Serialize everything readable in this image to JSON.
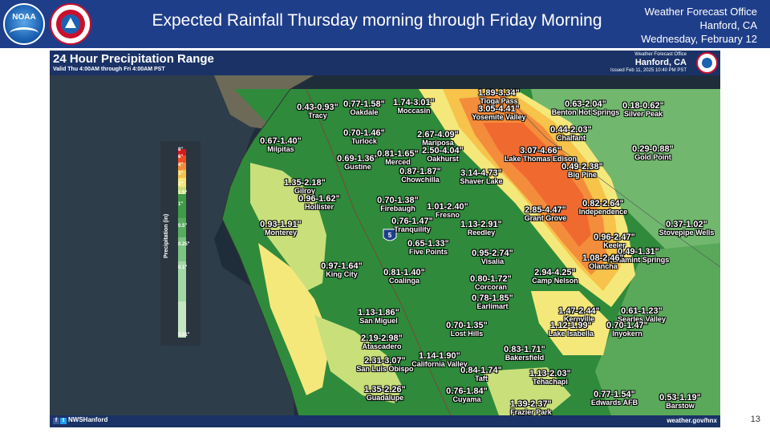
{
  "slide": {
    "title": "Expected Rainfall Thursday morning through Friday Morning",
    "office_line1": "Weather Forecast Office",
    "office_line2": "Hanford, CA",
    "office_line3": "Wednesday, February 12",
    "noaa_logo_text": "NOAA",
    "nws_logo_text": "NATIONAL WEATHER SERVICE",
    "page_number": "13"
  },
  "graphic": {
    "title": "24 Hour Precipitation Range",
    "valid": "Valid Thu 4:00AM through Fri 4:00AM PST",
    "office_line1": "Weather Forecast Office",
    "office_line2": "Hanford, CA",
    "issued": "Issued Feb 11, 2025 10:40 PM PST",
    "social": "NWSHanford",
    "website": "weather.gov/hnx",
    "highway_shield": "5"
  },
  "legend": {
    "axis_label": "Precipitation (in)",
    "ticks": [
      "8\"",
      "6\"",
      "4\"",
      "3\"",
      "2\"",
      "1.5\"",
      "1\"",
      "0.5\"",
      "0.25\"",
      "0.1\"",
      "0.01\""
    ],
    "colors": [
      "#d7191c",
      "#f04d23",
      "#f48d3b",
      "#f7c34b",
      "#f5e87a",
      "#c9e07a",
      "#3f9b47",
      "#56ae5d",
      "#7cc481",
      "#a3d7a5",
      "#c5e6c2"
    ]
  },
  "annotations": [
    {
      "range": "0.43-0.93\"",
      "location": "Tracy"
    },
    {
      "range": "0.77-1.58\"",
      "location": "Oakdale"
    },
    {
      "range": "1.74-3.01\"",
      "location": "Moccasin"
    },
    {
      "range": "1.89-3.34\"",
      "location": "Tioga Pass"
    },
    {
      "range": "3.05-4.41\"",
      "location": "Yosemite Valley"
    },
    {
      "range": "0.63-2.04\"",
      "location": "Benton Hot Springs"
    },
    {
      "range": "0.18-0.62\"",
      "location": "Silver Peak"
    },
    {
      "range": "0.70-1.46\"",
      "location": "Turlock"
    },
    {
      "range": "2.67-4.09\"",
      "location": "Mariposa"
    },
    {
      "range": "0.44-2.03\"",
      "location": "Chalfant"
    },
    {
      "range": "0.67-1.40\"",
      "location": "Milpitas"
    },
    {
      "range": "2.50-4.04\"",
      "location": "Oakhurst"
    },
    {
      "range": "3.07-4.66\"",
      "location": "Lake Thomas Edison"
    },
    {
      "range": "0.29-0.88\"",
      "location": "Gold Point"
    },
    {
      "range": "0.69-1.36\"",
      "location": "Gustine"
    },
    {
      "range": "0.81-1.65\"",
      "location": "Merced"
    },
    {
      "range": "0.87-1.87\"",
      "location": "Chowchilla"
    },
    {
      "range": "3.14-4.73\"",
      "location": "Shaver Lake"
    },
    {
      "range": "0.49-2.38\"",
      "location": "Big Pine"
    },
    {
      "range": "1.35-2.18\"",
      "location": "Gilroy"
    },
    {
      "range": "0.96-1.62\"",
      "location": "Hollister"
    },
    {
      "range": "0.70-1.38\"",
      "location": "Firebaugh"
    },
    {
      "range": "1.01-2.40\"",
      "location": "Fresno"
    },
    {
      "range": "0.82-2.64\"",
      "location": "Independence"
    },
    {
      "range": "2.85-4.47\"",
      "location": "Grant Grove"
    },
    {
      "range": "0.76-1.47\"",
      "location": "Tranquility"
    },
    {
      "range": "1.13-2.91\"",
      "location": "Reedley"
    },
    {
      "range": "0.93-1.91\"",
      "location": "Monterey"
    },
    {
      "range": "0.37-1.02\"",
      "location": "Stovepipe Wells"
    },
    {
      "range": "0.96-2.47\"",
      "location": "Keeler"
    },
    {
      "range": "0.65-1.33\"",
      "location": "Five Points"
    },
    {
      "range": "0.49-1.31\"",
      "location": "Panamint Springs"
    },
    {
      "range": "0.95-2.74\"",
      "location": "Visalia"
    },
    {
      "range": "1.08-2.46\"",
      "location": "Olancha"
    },
    {
      "range": "0.97-1.64\"",
      "location": "King City"
    },
    {
      "range": "0.81-1.40\"",
      "location": "Coalinga"
    },
    {
      "range": "0.80-1.72\"",
      "location": "Corcoran"
    },
    {
      "range": "2.94-4.25\"",
      "location": "Camp Nelson"
    },
    {
      "range": "0.78-1.85\"",
      "location": "Earlimart"
    },
    {
      "range": "1.13-1.86\"",
      "location": "San Miguel"
    },
    {
      "range": "1.47-2.44\"",
      "location": "Kernville"
    },
    {
      "range": "0.61-1.23\"",
      "location": "Searles Valley"
    },
    {
      "range": "0.70-1.35\"",
      "location": "Lost Hills"
    },
    {
      "range": "1.12-1.99\"",
      "location": "Lake Isabella"
    },
    {
      "range": "0.70-1.47\"",
      "location": "Inyokern"
    },
    {
      "range": "2.19-2.98\"",
      "location": "Atascadero"
    },
    {
      "range": "0.83-1.71\"",
      "location": "Bakersfield"
    },
    {
      "range": "2.31-3.07\"",
      "location": "San Luis Obispo"
    },
    {
      "range": "1.14-1.90\"",
      "location": "California Valley"
    },
    {
      "range": "0.84-1.74\"",
      "location": "Taft"
    },
    {
      "range": "1.13-2.03\"",
      "location": "Tehachapi"
    },
    {
      "range": "1.35-2.26\"",
      "location": "Guadalupe"
    },
    {
      "range": "0.76-1.84\"",
      "location": "Cuyama"
    },
    {
      "range": "0.77-1.54\"",
      "location": "Edwards AFB"
    },
    {
      "range": "0.53-1.19\"",
      "location": "Barstow"
    },
    {
      "range": "1.39-2.37\"",
      "location": "Frazier Park"
    }
  ]
}
